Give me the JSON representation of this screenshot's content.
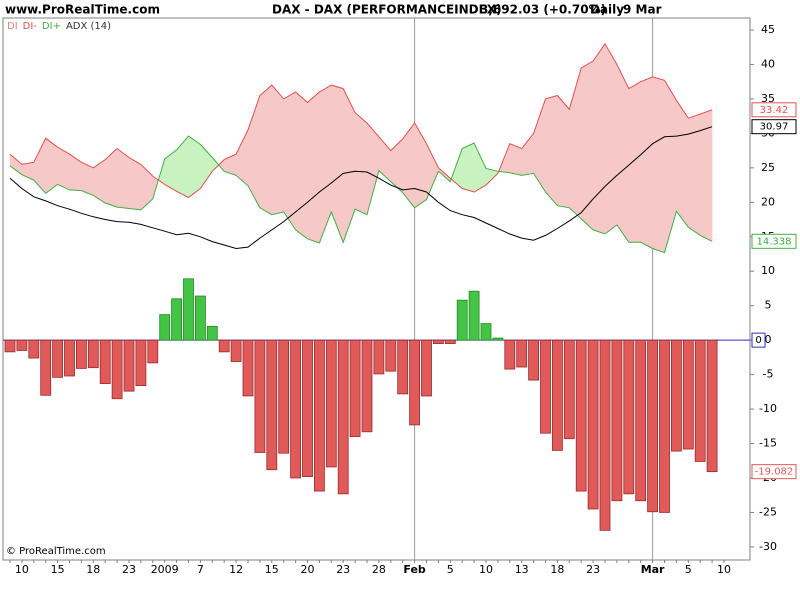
{
  "header": {
    "site": "www.ProRealTime.com",
    "title": "DAX - DAX (PERFORMANCEINDEX)",
    "price": "3,692.03 (+0.70%)",
    "period": "Daily",
    "date": "9 Mar"
  },
  "footer": "© ProRealTime.com",
  "chart_data": {
    "type": "bar",
    "categories": [
      null,
      "10",
      null,
      null,
      "15",
      null,
      null,
      "18",
      null,
      null,
      "23",
      null,
      null,
      "2009",
      null,
      null,
      "7",
      null,
      null,
      "12",
      null,
      null,
      "15",
      null,
      null,
      "20",
      null,
      null,
      "23",
      null,
      null,
      "28",
      null,
      null,
      "Feb",
      null,
      null,
      "5",
      null,
      null,
      "10",
      null,
      null,
      "13",
      null,
      null,
      "18",
      null,
      null,
      "23",
      null,
      null,
      null,
      null,
      "Mar",
      null,
      null,
      "5",
      null,
      null,
      "10"
    ],
    "series": [
      {
        "name": "DI",
        "type": "bar",
        "color": "#e05a5a",
        "positive_color": "#44c444",
        "values": [
          -1.7,
          -1.5,
          -2.6,
          -8,
          -5.4,
          -5.2,
          -4.1,
          -4,
          -6.3,
          -8.5,
          -7.4,
          -6.6,
          -3.3,
          3.7,
          6,
          8.9,
          6.4,
          2,
          -1.7,
          -3.1,
          -8.1,
          -16.3,
          -18.8,
          -16.4,
          -20,
          -19.8,
          -21.9,
          -18.4,
          -22.3,
          -14,
          -13.3,
          -4.9,
          -4.5,
          -7.8,
          -12.3,
          -8.1,
          -0.5,
          -0.5,
          5.8,
          7.1,
          2.4,
          0.3,
          -4.2,
          -3.9,
          -5.8,
          -13.5,
          -16,
          -14.3,
          -21.9,
          -24.5,
          -27.6,
          -23.3,
          -22.3,
          -23.3,
          -24.9,
          -25,
          -16.1,
          -15.8,
          -17.6,
          -19.082,
          null
        ]
      },
      {
        "name": "DI-",
        "type": "line",
        "color": "#e05050",
        "fill_color": "#f6c8c8",
        "values": [
          27,
          25.5,
          25.8,
          29.3,
          28,
          27,
          25.8,
          25,
          26.2,
          27.8,
          26.5,
          25.5,
          23.8,
          22.6,
          21.6,
          20.7,
          22,
          24.5,
          26.2,
          27,
          30.5,
          35.5,
          37,
          35,
          36,
          34.5,
          36,
          37,
          36.5,
          33,
          31.5,
          29.5,
          27.5,
          29.2,
          31.5,
          28.5,
          25,
          23.5,
          22,
          21.5,
          22.5,
          24.2,
          28.5,
          27.8,
          30,
          35,
          35.5,
          33.5,
          39.5,
          40.5,
          43,
          40,
          36.5,
          37.5,
          38.2,
          37.7,
          34.8,
          32.2,
          32.8,
          33.42,
          null
        ]
      },
      {
        "name": "DI+",
        "type": "line",
        "color": "#40b040",
        "fill_color": "#c8f2c0",
        "values": [
          25.3,
          24,
          23.2,
          21.3,
          22.6,
          21.8,
          21.7,
          21,
          19.9,
          19.3,
          19.1,
          18.9,
          20.5,
          26.3,
          27.6,
          29.6,
          28.4,
          26.5,
          24.5,
          23.9,
          22.4,
          19.2,
          18.2,
          18.6,
          16,
          14.7,
          14.1,
          18.6,
          14.2,
          19,
          18.2,
          24.6,
          23,
          21.4,
          19.2,
          20.4,
          24.5,
          23,
          27.8,
          28.6,
          24.9,
          24.5,
          24.3,
          23.9,
          24.2,
          21.5,
          19.5,
          19.2,
          17.6,
          16,
          15.4,
          16.7,
          14.2,
          14.2,
          13.3,
          12.7,
          18.7,
          16.4,
          15.2,
          14.338,
          null
        ]
      },
      {
        "name": "ADX (14)",
        "type": "line",
        "color": "#000000",
        "values": [
          23.5,
          22,
          20.8,
          20.2,
          19.5,
          19,
          18.4,
          17.9,
          17.5,
          17.2,
          17.1,
          16.8,
          16.3,
          15.8,
          15.3,
          15.5,
          15,
          14.3,
          13.8,
          13.3,
          13.5,
          14.8,
          16,
          17.2,
          18.6,
          20,
          21.5,
          22.8,
          24.2,
          24.5,
          24.4,
          23.5,
          22.5,
          21.8,
          22,
          21.5,
          20,
          18.8,
          18.2,
          17.8,
          17,
          16.2,
          15.4,
          14.8,
          14.5,
          15.2,
          16.2,
          17.3,
          18.5,
          20.5,
          22.3,
          23.9,
          25.4,
          26.9,
          28.5,
          29.5,
          29.6,
          29.9,
          30.4,
          30.97,
          null
        ]
      }
    ],
    "ylim": [
      -31.9,
      46.45
    ],
    "yticks": [
      -30,
      -25,
      -20,
      -15,
      -10,
      -5,
      0,
      5,
      10,
      15,
      20,
      25,
      30,
      35,
      40,
      45
    ],
    "zero_line_color": "#3030c0",
    "grid": false
  }
}
